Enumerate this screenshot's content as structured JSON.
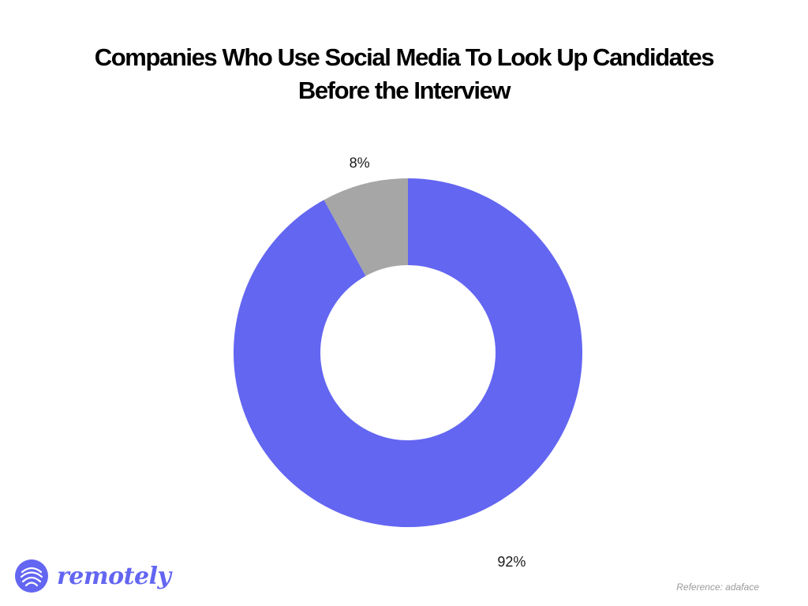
{
  "chart_data": {
    "type": "pie",
    "variant": "donut",
    "title_lines": [
      "Companies Who Use Social Media To Look Up Candidates",
      "Before the Interview"
    ],
    "slices": [
      {
        "value": 92,
        "label": "92%",
        "color": "#6366f1"
      },
      {
        "value": 8,
        "label": "8%",
        "color": "#a6a6a6"
      }
    ]
  },
  "brand": {
    "name": "remotely",
    "color": "#6366f1",
    "icon": "remotely-logo-icon"
  },
  "reference": "Reference: adaface"
}
